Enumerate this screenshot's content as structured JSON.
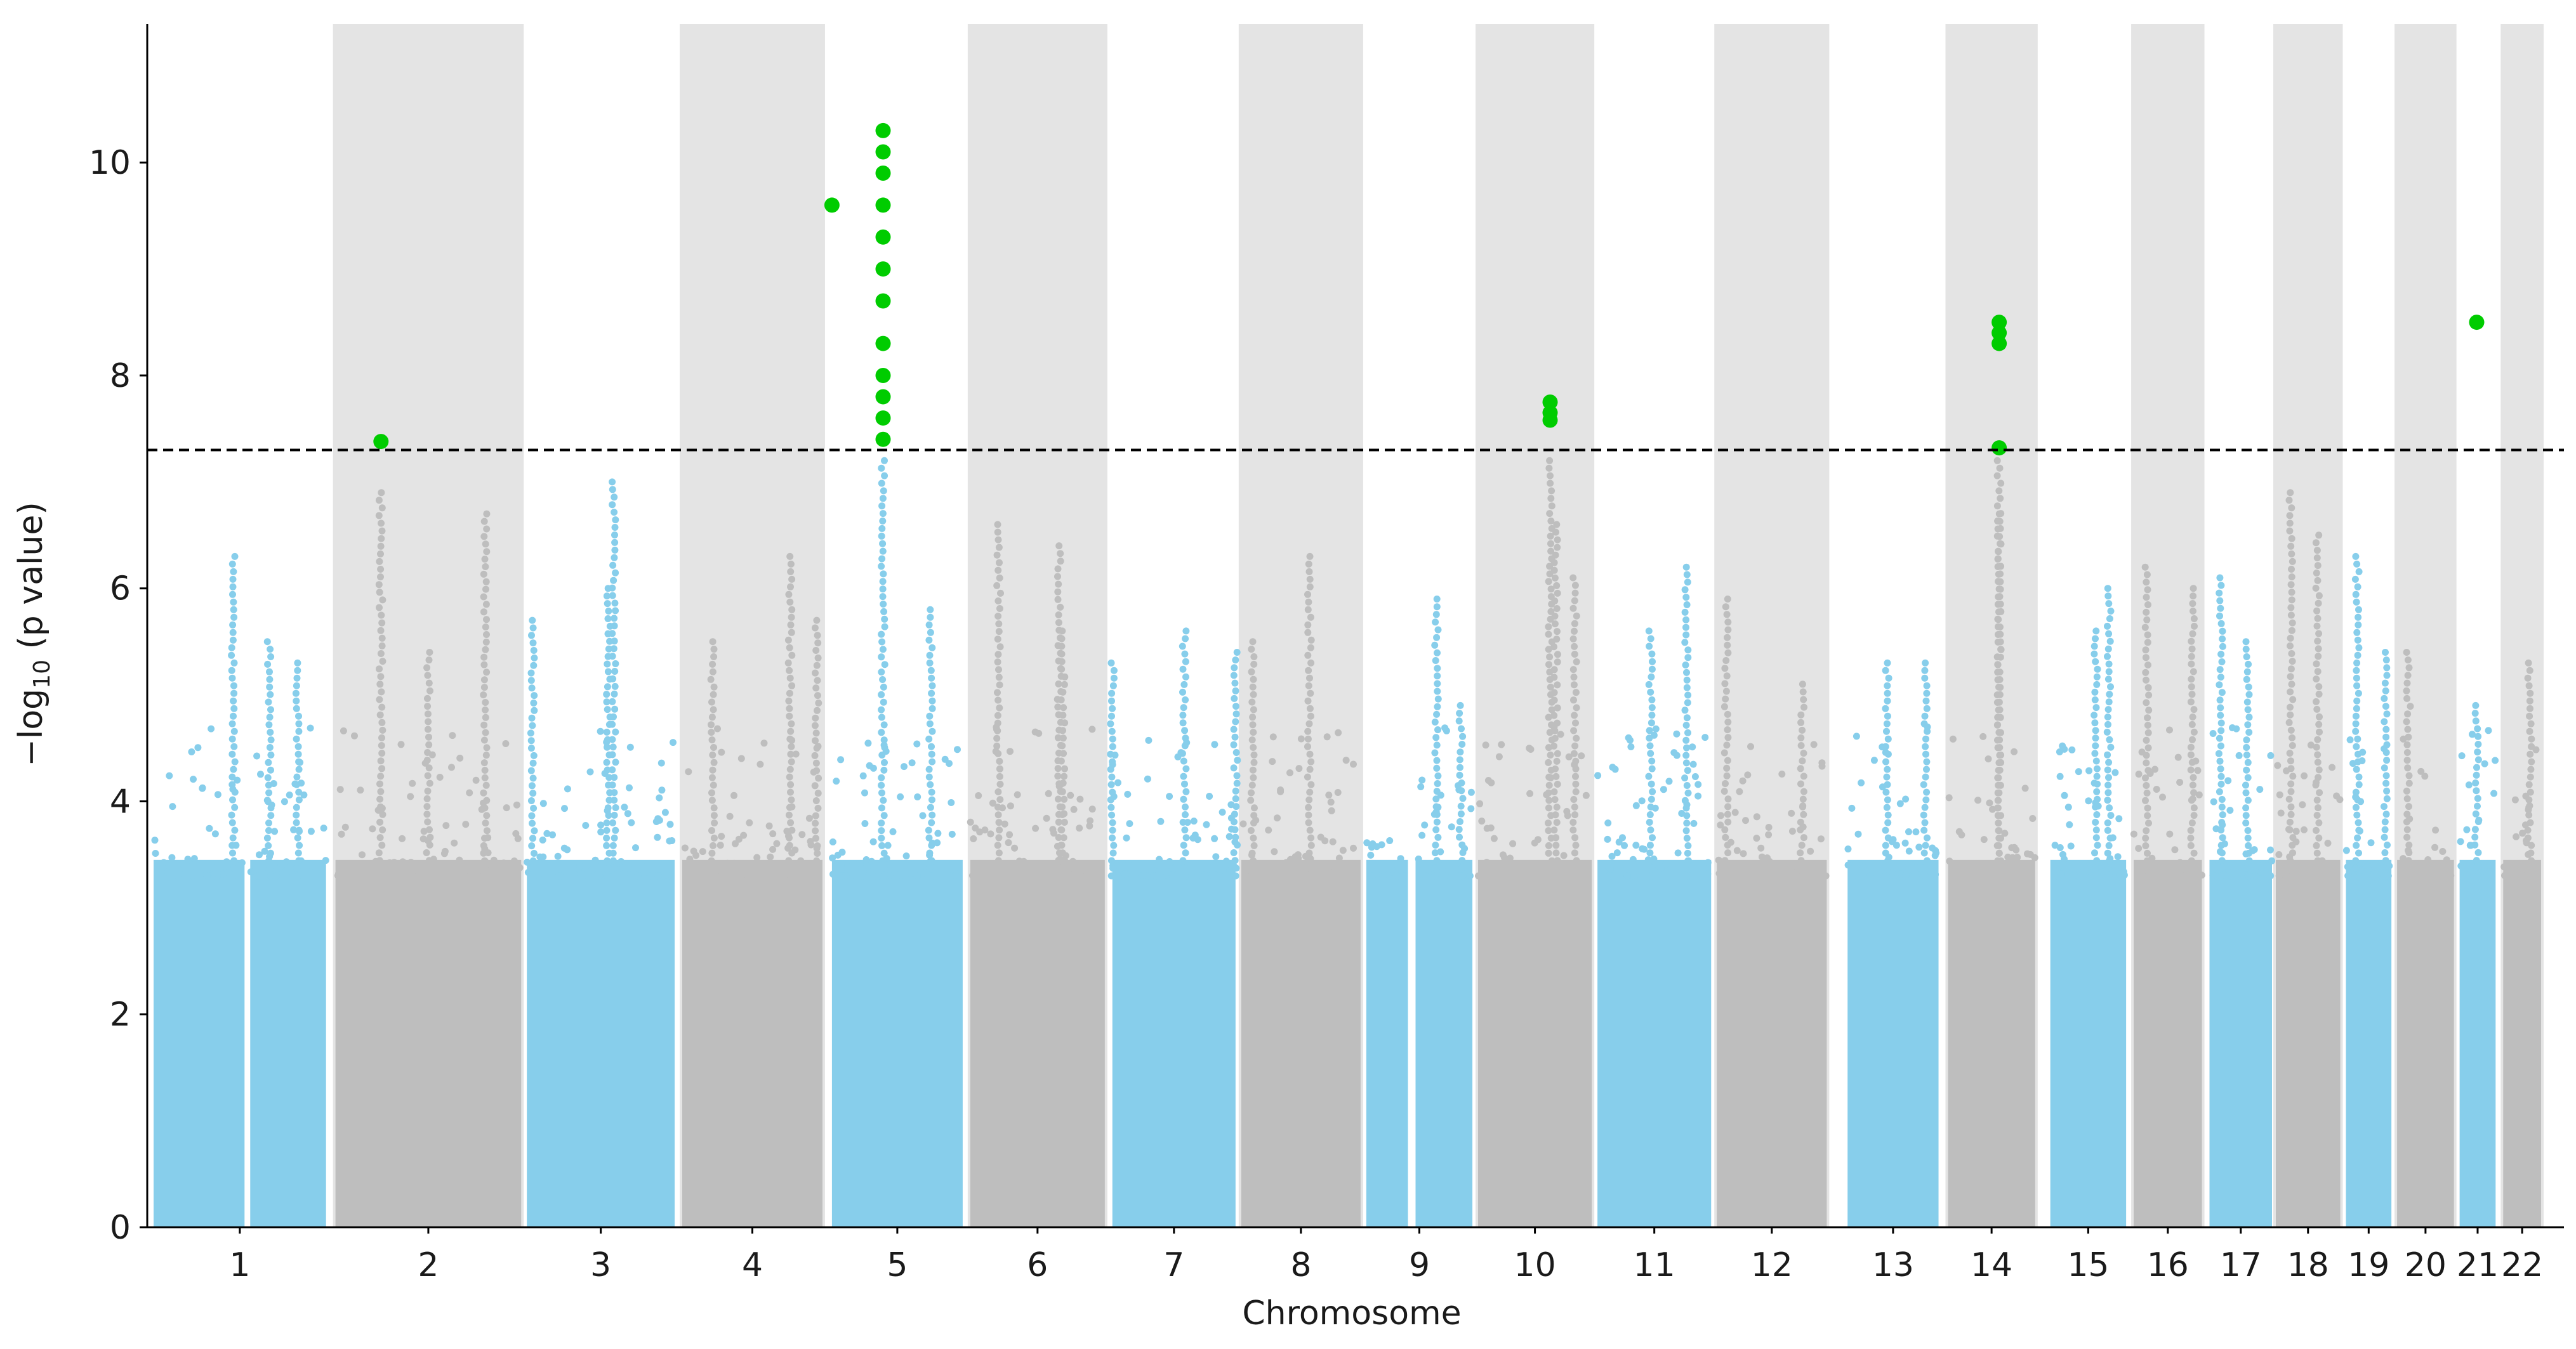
{
  "chart_data": {
    "type": "scatter",
    "subtype": "manhattan",
    "title": "",
    "xlabel": "Chromosome",
    "ylabel_base": "−log",
    "ylabel_sub": "10",
    "ylabel_tail": " (p value)",
    "ylim": [
      0,
      11.3
    ],
    "yticks": [
      0,
      2,
      4,
      6,
      8,
      10
    ],
    "threshold": 7.3,
    "threshold_style": "dashed",
    "colors": {
      "odd_chrom": "#87ceeb",
      "even_chrom": "#bebebe",
      "significant": "#00cc00",
      "band": "#e4e4e4",
      "threshold": "#000000"
    },
    "chromosomes": [
      {
        "label": "1",
        "blocks": [
          [
            0,
            48
          ],
          [
            51,
            91
          ]
        ],
        "peaks": [
          {
            "at": 42,
            "y": 6.3
          },
          {
            "at": 61,
            "y": 5.5
          },
          {
            "at": 76,
            "y": 5.3
          }
        ]
      },
      {
        "label": "2",
        "blocks": [
          [
            96,
            194
          ]
        ],
        "peaks": [
          {
            "at": 120,
            "y": 6.9
          },
          {
            "at": 175,
            "y": 6.7
          },
          {
            "at": 145,
            "y": 5.4
          }
        ],
        "hits": [
          {
            "at": 120,
            "y": 7.38
          }
        ]
      },
      {
        "label": "3",
        "blocks": [
          [
            197,
            275
          ]
        ],
        "peaks": [
          {
            "at": 243,
            "y": 7.0
          },
          {
            "at": 240,
            "y": 6.0
          },
          {
            "at": 200,
            "y": 5.7
          }
        ]
      },
      {
        "label": "4",
        "blocks": [
          [
            279,
            353
          ]
        ],
        "peaks": [
          {
            "at": 336,
            "y": 6.3
          },
          {
            "at": 350,
            "y": 5.7
          },
          {
            "at": 295,
            "y": 5.5
          }
        ]
      },
      {
        "label": "5",
        "blocks": [
          [
            358,
            427
          ]
        ],
        "peaks": [
          {
            "at": 385,
            "y": 7.2
          },
          {
            "at": 410,
            "y": 5.8
          }
        ],
        "hits": [
          {
            "at": 385,
            "y": 10.3
          },
          {
            "at": 385,
            "y": 10.1
          },
          {
            "at": 385,
            "y": 9.9
          },
          {
            "at": 385,
            "y": 9.6
          },
          {
            "at": 385,
            "y": 9.3
          },
          {
            "at": 385,
            "y": 9.0
          },
          {
            "at": 385,
            "y": 8.7
          },
          {
            "at": 385,
            "y": 8.3
          },
          {
            "at": 385,
            "y": 8.0
          },
          {
            "at": 385,
            "y": 7.8
          },
          {
            "at": 385,
            "y": 7.6
          },
          {
            "at": 385,
            "y": 7.4
          },
          {
            "at": 358,
            "y": 9.6
          }
        ]
      },
      {
        "label": "6",
        "blocks": [
          [
            431,
            502
          ]
        ],
        "peaks": [
          {
            "at": 446,
            "y": 6.6
          },
          {
            "at": 478,
            "y": 6.4
          },
          {
            "at": 480,
            "y": 5.6
          }
        ]
      },
      {
        "label": "7",
        "blocks": [
          [
            506,
            571
          ]
        ],
        "peaks": [
          {
            "at": 544,
            "y": 5.6
          },
          {
            "at": 571,
            "y": 5.4
          },
          {
            "at": 506,
            "y": 5.3
          }
        ]
      },
      {
        "label": "8",
        "blocks": [
          [
            574,
            637
          ]
        ],
        "peaks": [
          {
            "at": 610,
            "y": 6.3
          },
          {
            "at": 580,
            "y": 5.5
          }
        ]
      },
      {
        "label": "9",
        "blocks": [
          [
            640,
            662
          ],
          [
            666,
            696
          ]
        ],
        "peaks": [
          {
            "at": 677,
            "y": 5.9
          },
          {
            "at": 690,
            "y": 4.9
          }
        ]
      },
      {
        "label": "10",
        "blocks": [
          [
            699,
            759
          ]
        ],
        "peaks": [
          {
            "at": 737,
            "y": 7.2
          },
          {
            "at": 740,
            "y": 6.6
          },
          {
            "at": 750,
            "y": 6.1
          }
        ],
        "hits": [
          {
            "at": 737,
            "y": 7.75
          },
          {
            "at": 737,
            "y": 7.65
          },
          {
            "at": 737,
            "y": 7.58
          }
        ]
      },
      {
        "label": "11",
        "blocks": [
          [
            762,
            822
          ]
        ],
        "peaks": [
          {
            "at": 809,
            "y": 6.2
          },
          {
            "at": 790,
            "y": 5.6
          }
        ]
      },
      {
        "label": "12",
        "blocks": [
          [
            825,
            883
          ]
        ],
        "peaks": [
          {
            "at": 830,
            "y": 5.9
          },
          {
            "at": 870,
            "y": 5.1
          }
        ]
      },
      {
        "label": "13",
        "blocks": [
          [
            894,
            942
          ]
        ],
        "peaks": [
          {
            "at": 915,
            "y": 5.3
          },
          {
            "at": 935,
            "y": 5.3
          }
        ]
      },
      {
        "label": "14",
        "blocks": [
          [
            947,
            993
          ]
        ],
        "peaks": [
          {
            "at": 974,
            "y": 7.2
          },
          {
            "at": 974,
            "y": 6.7
          }
        ],
        "hits": [
          {
            "at": 974,
            "y": 8.5
          },
          {
            "at": 974,
            "y": 8.4
          },
          {
            "at": 974,
            "y": 8.3
          },
          {
            "at": 974,
            "y": 7.32
          }
        ]
      },
      {
        "label": "15",
        "blocks": [
          [
            1001,
            1041
          ]
        ],
        "peaks": [
          {
            "at": 1032,
            "y": 6.0
          },
          {
            "at": 1025,
            "y": 5.6
          }
        ]
      },
      {
        "label": "16",
        "blocks": [
          [
            1045,
            1081
          ]
        ],
        "peaks": [
          {
            "at": 1052,
            "y": 6.2
          },
          {
            "at": 1076,
            "y": 6.0
          }
        ]
      },
      {
        "label": "17",
        "blocks": [
          [
            1085,
            1118
          ]
        ],
        "peaks": [
          {
            "at": 1091,
            "y": 6.1
          },
          {
            "at": 1105,
            "y": 5.5
          }
        ]
      },
      {
        "label": "18",
        "blocks": [
          [
            1120,
            1154
          ]
        ],
        "peaks": [
          {
            "at": 1128,
            "y": 6.9
          },
          {
            "at": 1142,
            "y": 6.5
          }
        ]
      },
      {
        "label": "19",
        "blocks": [
          [
            1157,
            1181
          ]
        ],
        "peaks": [
          {
            "at": 1163,
            "y": 6.3
          },
          {
            "at": 1178,
            "y": 5.4
          }
        ]
      },
      {
        "label": "20",
        "blocks": [
          [
            1184,
            1214
          ]
        ],
        "peaks": [
          {
            "at": 1190,
            "y": 5.4
          }
        ]
      },
      {
        "label": "21",
        "blocks": [
          [
            1217,
            1236
          ]
        ],
        "peaks": [
          {
            "at": 1226,
            "y": 4.9
          }
        ],
        "hits": [
          {
            "at": 1226,
            "y": 8.5
          }
        ]
      },
      {
        "label": "22",
        "blocks": [
          [
            1240,
            1260
          ]
        ],
        "peaks": [
          {
            "at": 1254,
            "y": 5.3
          }
        ]
      }
    ]
  }
}
